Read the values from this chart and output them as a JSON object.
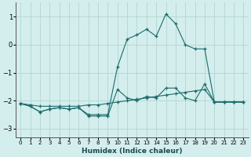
{
  "xlabel": "Humidex (Indice chaleur)",
  "bg_color": "#d4eeed",
  "grid_color": "#b8d8d5",
  "line_color": "#1a6b6b",
  "xlim": [
    -0.5,
    23.5
  ],
  "ylim": [
    -3.3,
    1.5
  ],
  "yticks": [
    -3,
    -2,
    -1,
    0,
    1
  ],
  "xticks": [
    0,
    1,
    2,
    3,
    4,
    5,
    6,
    7,
    8,
    9,
    10,
    11,
    12,
    13,
    14,
    15,
    16,
    17,
    18,
    19,
    20,
    21,
    22,
    23
  ],
  "series": [
    {
      "x": [
        0,
        1,
        2,
        3,
        4,
        5,
        6,
        7,
        8,
        9,
        10,
        11,
        12,
        13,
        14,
        15,
        16,
        17,
        18,
        19,
        20,
        21,
        22,
        23
      ],
      "y": [
        -2.1,
        -2.15,
        -2.2,
        -2.2,
        -2.2,
        -2.2,
        -2.2,
        -2.15,
        -2.15,
        -2.1,
        -2.05,
        -2.0,
        -1.95,
        -1.9,
        -1.85,
        -1.8,
        -1.75,
        -1.7,
        -1.65,
        -1.6,
        -2.05,
        -2.05,
        -2.05,
        -2.05
      ]
    },
    {
      "x": [
        0,
        1,
        2,
        3,
        4,
        5,
        6,
        7,
        8,
        9,
        10,
        11,
        12,
        13,
        14,
        15,
        16,
        17,
        18,
        19,
        20,
        21,
        22,
        23
      ],
      "y": [
        -2.1,
        -2.2,
        -2.4,
        -2.3,
        -2.25,
        -2.3,
        -2.25,
        -2.5,
        -2.5,
        -2.5,
        -0.8,
        0.2,
        0.35,
        0.55,
        0.3,
        1.1,
        0.75,
        0.0,
        -0.15,
        -0.15,
        -2.05,
        -2.05,
        -2.05,
        -2.05
      ]
    },
    {
      "x": [
        0,
        1,
        2,
        3,
        4,
        5,
        6,
        7,
        8,
        9,
        10,
        11,
        12,
        13,
        14,
        15,
        16,
        17,
        18,
        19,
        20,
        21,
        22,
        23
      ],
      "y": [
        -2.1,
        -2.2,
        -2.4,
        -2.3,
        -2.25,
        -2.3,
        -2.25,
        -2.55,
        -2.55,
        -2.55,
        -1.6,
        -1.9,
        -2.0,
        -1.85,
        -1.9,
        -1.55,
        -1.55,
        -1.9,
        -2.0,
        -1.4,
        -2.05,
        -2.05,
        -2.05,
        -2.05
      ]
    }
  ]
}
